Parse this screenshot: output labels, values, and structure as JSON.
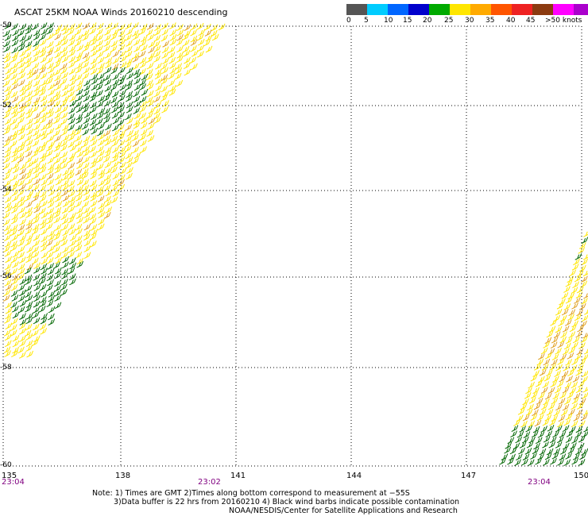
{
  "title": "ASCAT 25KM NOAA Winds 20160210 descending",
  "color_scale": {
    "colors": [
      "#555555",
      "#00ccff",
      "#0066ff",
      "#0000cc",
      "#00aa00",
      "#ffe600",
      "#ffaa00",
      "#ff5500",
      "#ee2222",
      "#8b3a10",
      "#ff00ff",
      "#aa00cc",
      "#440088"
    ],
    "labels": [
      "0",
      "5",
      "10",
      "15",
      "20",
      "25",
      "30",
      "35",
      "40",
      "45",
      ">50 knots"
    ]
  },
  "latitudes": [
    "-50",
    "-52",
    "-54",
    "-56",
    "-58",
    "-60"
  ],
  "longitudes": [
    "135",
    "138",
    "141",
    "144",
    "147",
    "150"
  ],
  "times": [
    "23:04",
    "23:02",
    "23:04"
  ],
  "notes": [
    "Note: 1) Times are GMT 2)Times along bottom correspond to measurement at −55S",
    "3)Data buffer is 22 hrs from 20160210 4) Black wind barbs indicate possible contamination",
    "NOAA/NESDIS/Center for Satellite Applications and Research"
  ],
  "colors": {
    "barb_green": "#006600",
    "barb_yellow": "#ffe600",
    "barb_orange": "#e0a020",
    "grid": "#000000"
  }
}
